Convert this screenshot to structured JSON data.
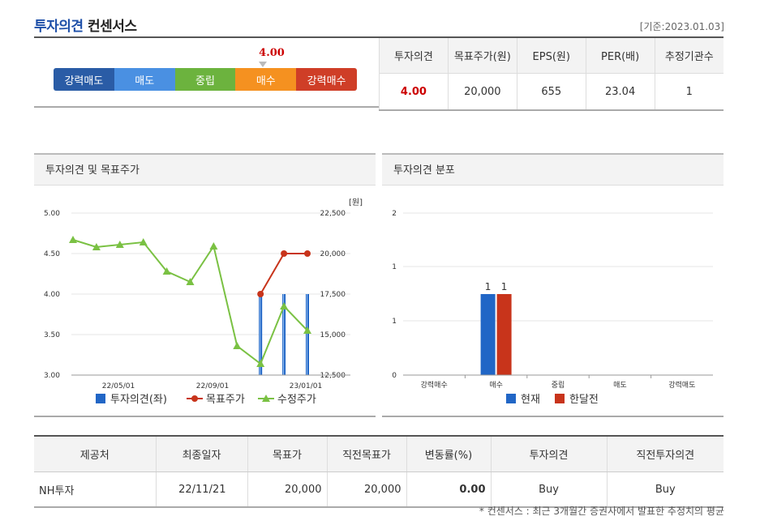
{
  "header": {
    "title_blue": "투자의견",
    "title_dark": "컨센서스",
    "base_date": "[기준:2023.01.03]"
  },
  "scale": {
    "marker_value": "4.00",
    "segments": [
      {
        "label": "강력매도",
        "color": "#2a5ca6"
      },
      {
        "label": "매도",
        "color": "#4a90e2"
      },
      {
        "label": "중립",
        "color": "#6cb33e"
      },
      {
        "label": "매수",
        "color": "#f59120"
      },
      {
        "label": "강력매수",
        "color": "#cf3e27"
      }
    ]
  },
  "summary": {
    "headers": [
      "투자의견",
      "목표주가(원)",
      "EPS(원)",
      "PER(배)",
      "추정기관수"
    ],
    "values": [
      "4.00",
      "20,000",
      "655",
      "23.04",
      "1"
    ]
  },
  "left_chart": {
    "panel_title": "투자의견 및 목표주가",
    "chart_data": {
      "type": "line",
      "y_left_ticks": [
        "5.00",
        "4.50",
        "4.00",
        "3.50",
        "3.00"
      ],
      "y_left_range": [
        3.0,
        5.0
      ],
      "y_right_unit": "[원]",
      "y_right_ticks": [
        "22,500",
        "20,000",
        "17,500",
        "15,000",
        "12,500"
      ],
      "y_right_range": [
        12500,
        22500
      ],
      "x_ticks": [
        "22/05/01",
        "22/09/01",
        "23/01/01"
      ],
      "series": [
        {
          "name": "투자의견(좌)",
          "color": "#2166c6",
          "type": "bar",
          "values": [
            null,
            null,
            null,
            null,
            null,
            null,
            null,
            null,
            4.0,
            4.0,
            4.0
          ]
        },
        {
          "name": "목표주가",
          "color": "#c8341b",
          "type": "line",
          "values": [
            null,
            null,
            null,
            null,
            null,
            null,
            null,
            null,
            17500,
            20000,
            20000
          ]
        },
        {
          "name": "수정주가",
          "color": "#7ac143",
          "type": "line",
          "values": [
            20850,
            20400,
            20550,
            20700,
            18900,
            18250,
            20450,
            14300,
            13200,
            16750,
            15250
          ]
        }
      ]
    }
  },
  "right_chart": {
    "panel_title": "투자의견 분포",
    "chart_data": {
      "type": "bar",
      "categories": [
        "강력매수",
        "매수",
        "중립",
        "매도",
        "강력매도"
      ],
      "y_ticks": [
        "2",
        "1",
        "1",
        "0"
      ],
      "ylim": [
        0,
        2
      ],
      "series": [
        {
          "name": "현재",
          "color": "#2166c6",
          "values": [
            0,
            1,
            0,
            0,
            0
          ]
        },
        {
          "name": "한달전",
          "color": "#c8341b",
          "values": [
            0,
            1,
            0,
            0,
            0
          ]
        }
      ],
      "data_labels": [
        "1",
        "1"
      ]
    }
  },
  "detail": {
    "headers": [
      "제공처",
      "최종일자",
      "목표가",
      "직전목표가",
      "변동률(%)",
      "투자의견",
      "직전투자의견"
    ],
    "rows": [
      [
        "NH투자",
        "22/11/21",
        "20,000",
        "20,000",
        "0.00",
        "Buy",
        "Buy"
      ]
    ]
  },
  "footnote": "* 컨센서스 : 최근 3개월간 증권사에서 발표한 추정치의 평균"
}
